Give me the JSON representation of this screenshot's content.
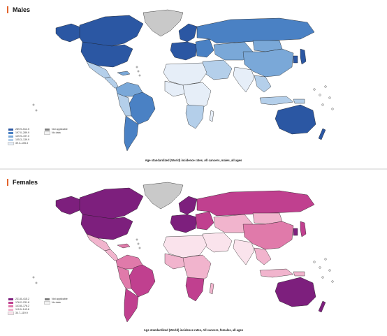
{
  "males": {
    "title": "Males",
    "caption": "Age standardized (World) incidence rates, All cancers, males, all ages",
    "legend": [
      {
        "label": "289.9–514.5",
        "color": "#2b57a3"
      },
      {
        "label": "197.0–289.9",
        "color": "#4a81c4"
      },
      {
        "label": "139.9–197.0",
        "color": "#7aa8d8"
      },
      {
        "label": "105.3–139.9",
        "color": "#b4cfea"
      },
      {
        "label": "39.3–105.3",
        "color": "#e6eef8"
      }
    ],
    "not_applicable_label": "Not applicable",
    "no_data_label": "No data"
  },
  "females": {
    "title": "Females",
    "caption": "Age standardized (World) incidence rates, All cancers, females, all ages",
    "legend": [
      {
        "label": "231.8–415.2",
        "color": "#7d1f7d"
      },
      {
        "label": "176.2–231.8",
        "color": "#c0408f"
      },
      {
        "label": "143.8–176.2",
        "color": "#e07aaa"
      },
      {
        "label": "119.9–143.8",
        "color": "#f1b4cd"
      },
      {
        "label": "34.7–119.9",
        "color": "#fae3ec"
      }
    ],
    "not_applicable_label": "Not applicable",
    "no_data_label": "No data"
  },
  "colors": {
    "not_applicable": "#7f7f7f",
    "no_data": "#f2f2f2",
    "greenland": "#c9c9c9",
    "border": "#1a1a1a",
    "title_accent": "#e3642c"
  }
}
